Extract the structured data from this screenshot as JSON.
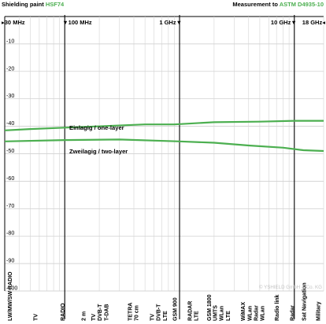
{
  "header": {
    "title_prefix": "Shielding paint ",
    "title_product": "HSF74",
    "measurement_prefix": "Measurement to ",
    "measurement_standard": "ASTM D4935-10",
    "accent_color": "#4caf50"
  },
  "freq_markers": [
    {
      "label": "30 MHz",
      "symbol": "▸",
      "side": "left"
    },
    {
      "label": "100 MHz",
      "symbol": "▼",
      "side": "left"
    },
    {
      "label": "1 GHz",
      "symbol": "▼",
      "side": "right"
    },
    {
      "label": "10 GHz",
      "symbol": "▼",
      "side": "right"
    },
    {
      "label": "18 GHz",
      "symbol": "◂",
      "side": "right"
    }
  ],
  "watermark": "© YSHIELD GmbH & Co. KG",
  "chart_data": {
    "type": "line",
    "x_scale": "log",
    "xlim_mhz": [
      30,
      18000
    ],
    "ylim_db": [
      0,
      -100
    ],
    "y_ticks": [
      -10,
      -20,
      -30,
      -40,
      -50,
      -60,
      -70,
      -80,
      -90,
      -100
    ],
    "major_verticals_mhz": [
      100,
      1000,
      10000
    ],
    "grid": true,
    "series": [
      {
        "name": "Einlagig / one-layer",
        "color": "#4caf50",
        "points": [
          [
            30,
            -41.5
          ],
          [
            50,
            -41
          ],
          [
            100,
            -40.5
          ],
          [
            200,
            -40
          ],
          [
            500,
            -39.3
          ],
          [
            900,
            -39.3
          ],
          [
            2000,
            -38.5
          ],
          [
            5000,
            -38.3
          ],
          [
            10000,
            -38
          ],
          [
            18000,
            -38
          ]
        ]
      },
      {
        "name": "Zweilagig / two-layer",
        "color": "#4caf50",
        "points": [
          [
            30,
            -45.5
          ],
          [
            100,
            -45
          ],
          [
            300,
            -44.8
          ],
          [
            1000,
            -45.5
          ],
          [
            2000,
            -46
          ],
          [
            4000,
            -47
          ],
          [
            8000,
            -47.8
          ],
          [
            12000,
            -48.7
          ],
          [
            18000,
            -49
          ]
        ]
      }
    ],
    "x_categories": [
      {
        "label": "LW / MW / SW RADIO",
        "lines": [
          "LW/MW/SW RADIO"
        ],
        "f": 33
      },
      {
        "label": "TV",
        "lines": [
          "TV"
        ],
        "f": 55
      },
      {
        "label": "FM RADIO",
        "lines": [
          "RADIO"
        ],
        "f": 95
      },
      {
        "label": "2 m",
        "lines": [
          "2 m"
        ],
        "f": 145
      },
      {
        "label": "TV DVB-T T-DAB",
        "lines": [
          "TV",
          "DVB-T",
          "T-DAB"
        ],
        "f": 200
      },
      {
        "label": "TETRA 70 cm",
        "lines": [
          "TETRA",
          "70 cm"
        ],
        "f": 390
      },
      {
        "label": "TV DVB-T LTE",
        "lines": [
          "TV",
          "DVB-T",
          "LTE"
        ],
        "f": 650
      },
      {
        "label": "GSM 900",
        "lines": [
          "GSM 900"
        ],
        "f": 900
      },
      {
        "label": "RADAR LTE",
        "lines": [
          "RADAR",
          "LTE"
        ],
        "f": 1300
      },
      {
        "label": "GSM 1800",
        "lines": [
          "GSM 1800"
        ],
        "f": 1800
      },
      {
        "label": "UMTS WLan LTE",
        "lines": [
          "UMTS",
          "WLan",
          "LTE"
        ],
        "f": 2300
      },
      {
        "label": "WiMAX WLan Radar WLan",
        "lines": [
          "WiMAX",
          "WLan",
          "Radar",
          "WLan"
        ],
        "f": 4300
      },
      {
        "label": "Radio link",
        "lines": [
          "Radio link"
        ],
        "f": 7000
      },
      {
        "label": "Radar",
        "lines": [
          "Radar"
        ],
        "f": 9500
      },
      {
        "label": "Sat Navigation",
        "lines": [
          "Sat Navigation"
        ],
        "f": 12000
      },
      {
        "label": "Military",
        "lines": [
          "Military"
        ],
        "f": 16000
      }
    ]
  }
}
